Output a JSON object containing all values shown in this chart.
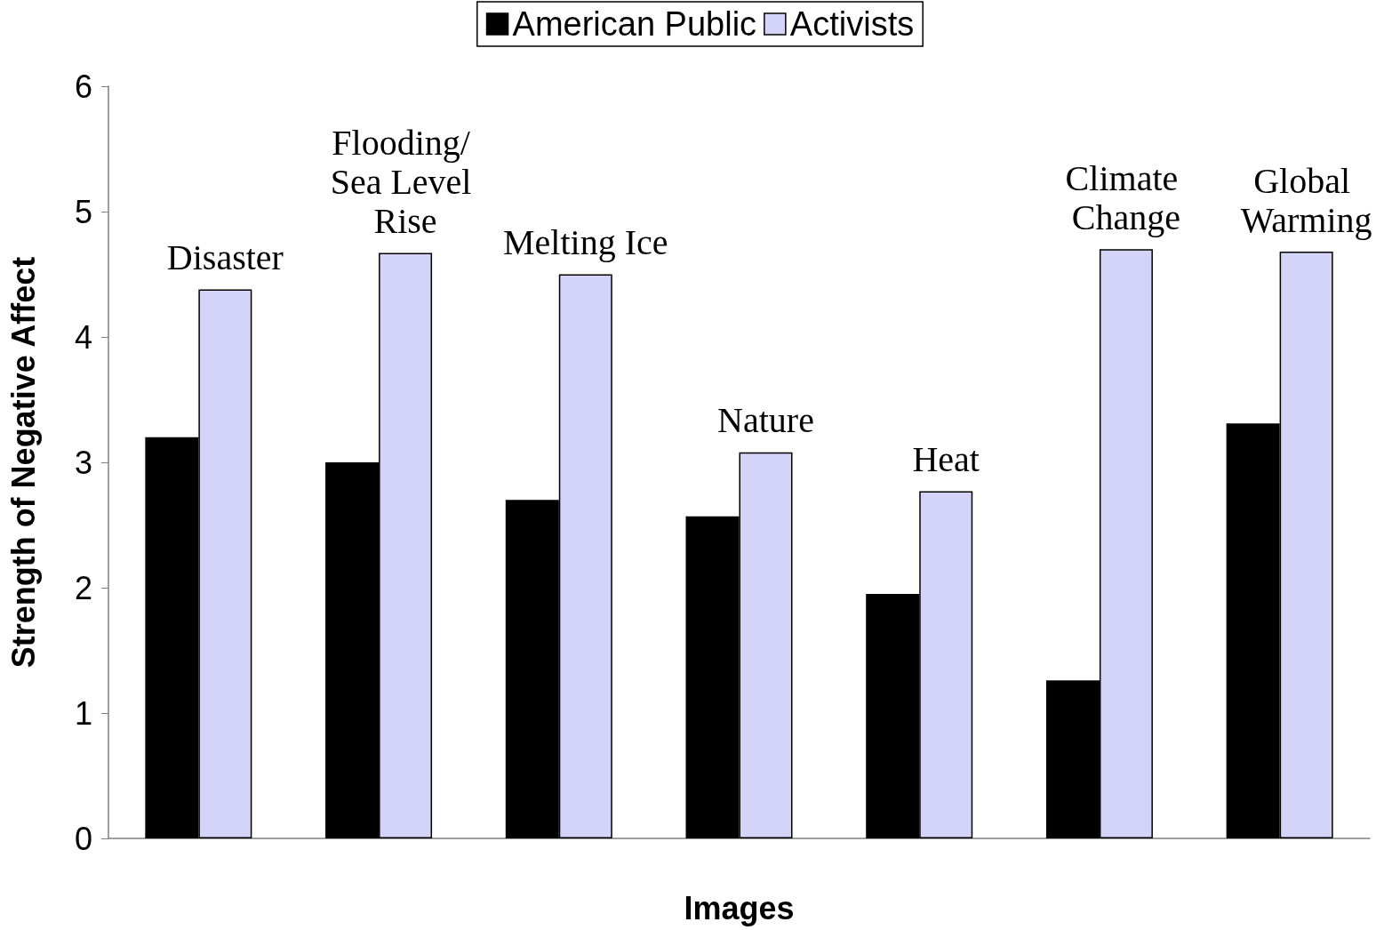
{
  "chart_data": {
    "type": "bar",
    "xlabel": "Images",
    "ylabel": "Strength of Negative Affect",
    "categories": [
      "Disaster",
      "Flooding/ Sea Level Rise",
      "Melting Ice",
      "Nature",
      "Heat",
      "Climate Change",
      "Global Warming"
    ],
    "series": [
      {
        "name": "American Public",
        "color": "#000000",
        "values": [
          3.2,
          3.0,
          2.7,
          2.57,
          1.95,
          1.26,
          3.31
        ]
      },
      {
        "name": "Activists",
        "color": "#d4d4f8",
        "values": [
          4.38,
          4.67,
          4.5,
          3.08,
          2.77,
          4.7,
          4.68
        ]
      }
    ],
    "ylim": [
      0,
      6
    ],
    "yticks": [
      0,
      1,
      2,
      3,
      4,
      5,
      6
    ],
    "grid": false,
    "legend": "top",
    "tick_labels": "y"
  }
}
